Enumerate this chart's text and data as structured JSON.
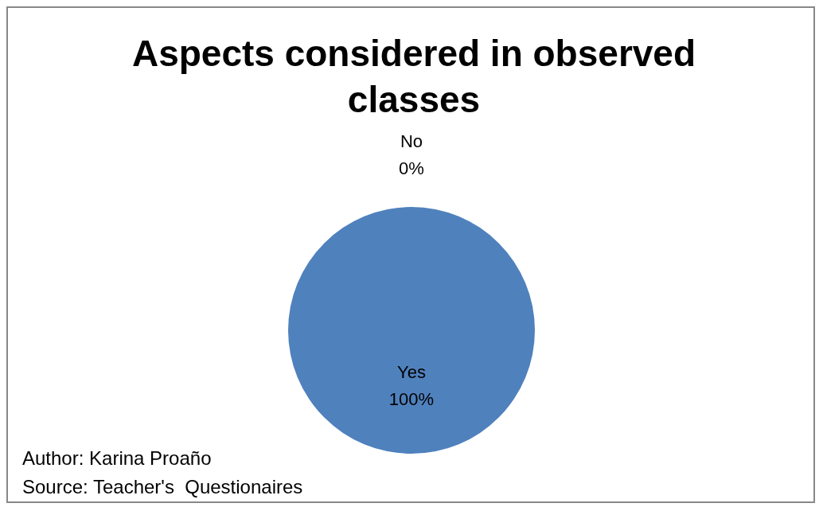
{
  "chart_data": {
    "type": "pie",
    "title": "Aspects considered in observed classes",
    "categories": [
      "Yes",
      "No"
    ],
    "values": [
      100,
      0
    ],
    "colors": [
      "#4f81bd",
      "#c0504d"
    ],
    "value_labels": [
      "100%",
      "0%"
    ],
    "legend": false,
    "annotations": [
      "Author: Karina Proaño",
      "Source: Teacher's  Questionaires"
    ]
  }
}
